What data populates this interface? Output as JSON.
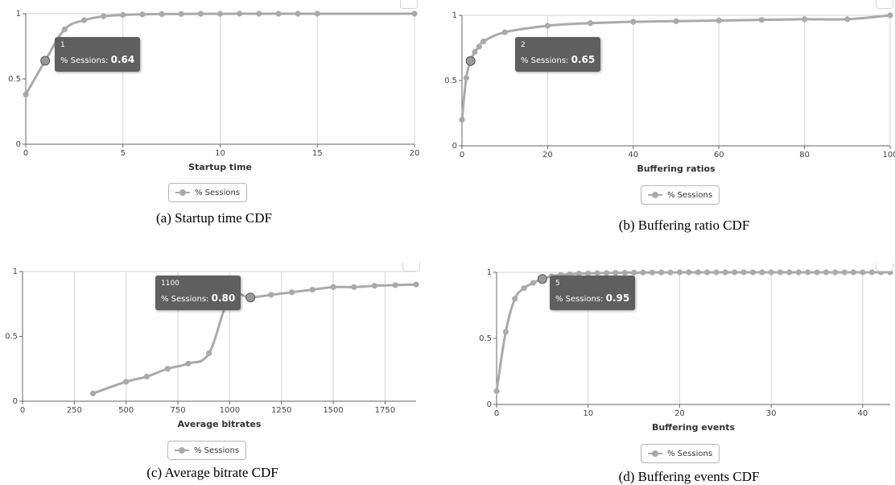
{
  "chart_data": [
    {
      "type": "line",
      "caption": "(a) Startup time CDF",
      "xlabel": "Startup time",
      "ylabel": "",
      "xlim": [
        0,
        20
      ],
      "ylim": [
        0,
        1
      ],
      "xticks": [
        0,
        5,
        10,
        15,
        20
      ],
      "yticks": [
        0,
        0.5,
        1
      ],
      "ytick_labels": [
        "0",
        "0.5",
        "1"
      ],
      "grid": "vertical",
      "legend_position": "bottom-center",
      "series": [
        {
          "name": "% Sessions",
          "color": "#aaaaaa",
          "x": [
            0,
            1,
            2,
            3,
            4,
            5,
            6,
            7,
            8,
            9,
            10,
            11,
            12,
            13,
            14,
            15,
            20
          ],
          "y": [
            0.38,
            0.64,
            0.88,
            0.95,
            0.98,
            0.99,
            0.995,
            0.997,
            0.998,
            0.999,
            0.999,
            1.0,
            1.0,
            1.0,
            1.0,
            1.0,
            1.0
          ]
        }
      ],
      "tooltip": {
        "x": "1",
        "series": "% Sessions",
        "value": "0.64",
        "point_x": 1,
        "point_y": 0.64
      }
    },
    {
      "type": "line",
      "caption": "(b) Buffering ratio CDF",
      "xlabel": "Buffering ratios",
      "ylabel": "",
      "xlim": [
        0,
        100
      ],
      "ylim": [
        0,
        1
      ],
      "xticks": [
        0,
        20,
        40,
        60,
        80,
        100
      ],
      "yticks": [
        0,
        0.5,
        1
      ],
      "ytick_labels": [
        "0",
        "0.5",
        "1"
      ],
      "grid": "vertical",
      "legend_position": "bottom-center",
      "series": [
        {
          "name": "% Sessions",
          "color": "#aaaaaa",
          "x": [
            0,
            1,
            2,
            3,
            4,
            5,
            10,
            20,
            30,
            40,
            50,
            60,
            70,
            80,
            90,
            100
          ],
          "y": [
            0.2,
            0.52,
            0.65,
            0.72,
            0.76,
            0.8,
            0.87,
            0.92,
            0.94,
            0.95,
            0.955,
            0.96,
            0.965,
            0.97,
            0.97,
            1.0
          ]
        }
      ],
      "tooltip": {
        "x": "2",
        "series": "% Sessions",
        "value": "0.65",
        "point_x": 2,
        "point_y": 0.65
      }
    },
    {
      "type": "line",
      "caption": "(c) Average bitrate CDF",
      "xlabel": "Average bitrates",
      "ylabel": "",
      "xlim": [
        0,
        1900
      ],
      "ylim": [
        0,
        1
      ],
      "xticks": [
        0,
        250,
        500,
        750,
        1000,
        1250,
        1500,
        1750
      ],
      "yticks": [
        0,
        0.5,
        1
      ],
      "ytick_labels": [
        "0",
        "0.5",
        "1"
      ],
      "grid": "vertical",
      "legend_position": "bottom-center",
      "series": [
        {
          "name": "% Sessions",
          "color": "#aaaaaa",
          "x": [
            340,
            500,
            600,
            700,
            800,
            900,
            1000,
            1100,
            1200,
            1300,
            1400,
            1500,
            1600,
            1700,
            1800,
            1900
          ],
          "y": [
            0.06,
            0.15,
            0.19,
            0.25,
            0.29,
            0.37,
            0.8,
            0.8,
            0.82,
            0.84,
            0.86,
            0.88,
            0.88,
            0.89,
            0.895,
            0.9
          ]
        }
      ],
      "tooltip": {
        "x": "1100",
        "series": "% Sessions",
        "value": "0.80",
        "point_x": 1100,
        "point_y": 0.8
      }
    },
    {
      "type": "line",
      "caption": "(d) Buffering events CDF",
      "xlabel": "Buffering events",
      "ylabel": "",
      "xlim": [
        0,
        43
      ],
      "ylim": [
        0,
        1
      ],
      "xticks": [
        0,
        10,
        20,
        30,
        40
      ],
      "yticks": [
        0,
        0.5,
        1
      ],
      "ytick_labels": [
        "0",
        "0.5",
        "1"
      ],
      "grid": "vertical",
      "legend_position": "bottom-center",
      "series": [
        {
          "name": "% Sessions",
          "color": "#aaaaaa",
          "x": [
            0,
            1,
            2,
            3,
            4,
            5,
            6,
            7,
            8,
            9,
            10,
            11,
            12,
            13,
            14,
            15,
            16,
            17,
            18,
            19,
            20,
            21,
            22,
            23,
            24,
            25,
            26,
            27,
            28,
            29,
            30,
            31,
            32,
            33,
            34,
            35,
            36,
            37,
            38,
            39,
            40,
            41,
            42,
            43
          ],
          "y": [
            0.1,
            0.55,
            0.8,
            0.88,
            0.92,
            0.95,
            0.97,
            0.98,
            0.985,
            0.99,
            0.992,
            0.994,
            0.995,
            0.996,
            0.997,
            0.998,
            0.998,
            0.999,
            0.999,
            0.999,
            1.0,
            1.0,
            1.0,
            1.0,
            1.0,
            1.0,
            1.0,
            1.0,
            1.0,
            1.0,
            1.0,
            1.0,
            1.0,
            1.0,
            1.0,
            1.0,
            1.0,
            1.0,
            1.0,
            1.0,
            1.0,
            1.0,
            1.0,
            1.0
          ]
        }
      ],
      "tooltip": {
        "x": "5",
        "series": "% Sessions",
        "value": "0.95",
        "point_x": 5,
        "point_y": 0.95
      }
    }
  ]
}
